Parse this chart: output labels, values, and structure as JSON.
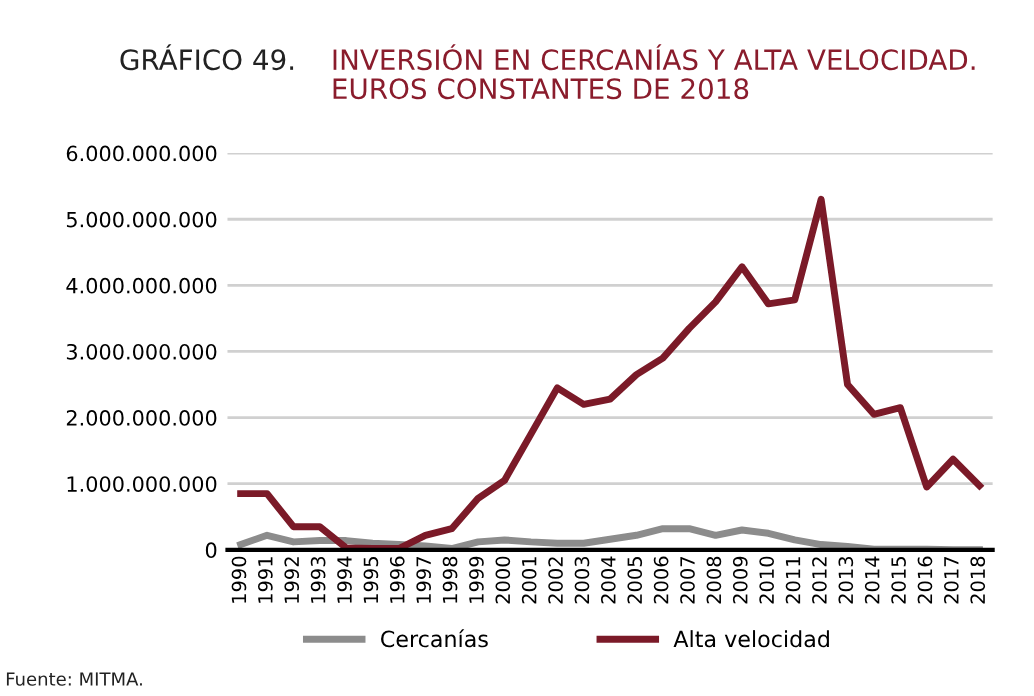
{
  "chart_data": {
    "type": "line",
    "title": "GRÁFICO 49.",
    "subtitle": "INVERSIÓN EN CERCANÍAS Y ALTA VELOCIDAD.\nEUROS CONSTANTES DE 2018",
    "categories": [
      "1990",
      "1991",
      "1992",
      "1993",
      "1994",
      "1995",
      "1996",
      "1997",
      "1998",
      "1999",
      "2000",
      "2001",
      "2002",
      "2003",
      "2004",
      "2005",
      "2006",
      "2007",
      "2008",
      "2009",
      "2010",
      "2011",
      "2012",
      "2013",
      "2014",
      "2015",
      "2016",
      "2017",
      "2018"
    ],
    "series": [
      {
        "name": "Cercanías",
        "color": "#8c8c8c",
        "values": [
          80000000,
          220000000,
          120000000,
          140000000,
          140000000,
          100000000,
          80000000,
          60000000,
          20000000,
          120000000,
          150000000,
          120000000,
          100000000,
          100000000,
          160000000,
          220000000,
          320000000,
          320000000,
          220000000,
          300000000,
          250000000,
          150000000,
          80000000,
          50000000,
          10000000,
          10000000,
          10000000,
          0,
          0
        ]
      },
      {
        "name": "Alta velocidad",
        "color": "#7b1a28",
        "values": [
          850000000,
          850000000,
          350000000,
          350000000,
          30000000,
          20000000,
          20000000,
          220000000,
          320000000,
          780000000,
          1050000000,
          1750000000,
          2450000000,
          2200000000,
          2280000000,
          2650000000,
          2900000000,
          3350000000,
          3750000000,
          4280000000,
          3720000000,
          3780000000,
          5300000000,
          2500000000,
          2050000000,
          2150000000,
          950000000,
          1370000000,
          970000000
        ]
      }
    ],
    "ylim": [
      0,
      6000000000
    ],
    "yticks": [
      0,
      {
        "value": 1000000000,
        "label": "1.000.000.000"
      },
      {
        "value": 2000000000,
        "label": "2.000.000.000"
      },
      {
        "value": 3000000000,
        "label": "3.000.000.000"
      },
      {
        "value": 4000000000,
        "label": "4.000.000.000"
      },
      {
        "value": 5000000000,
        "label": "5.000.000.000"
      },
      {
        "value": 6000000000,
        "label": "6.000.000.000"
      }
    ],
    "grid": "y",
    "legend": "bottom",
    "marker": "none",
    "line_style": "solid",
    "annotations": [
      "Fuente: MITMA."
    ]
  }
}
